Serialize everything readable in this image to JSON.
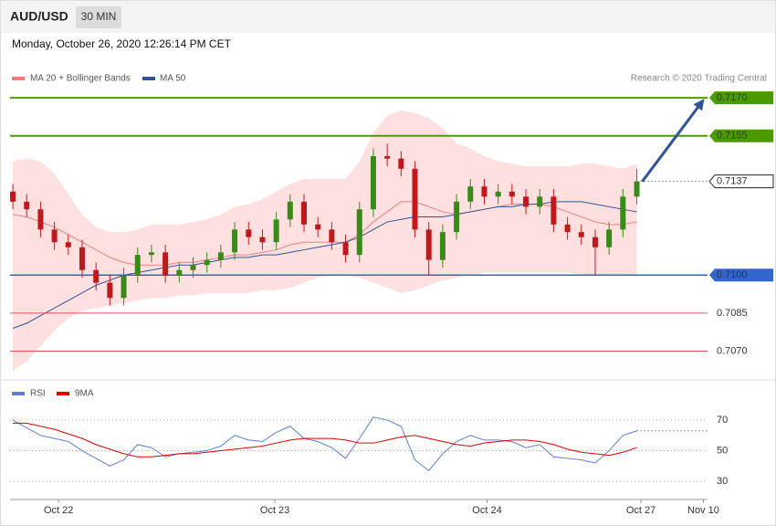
{
  "header": {
    "symbol": "AUD/USD",
    "timeframe": "30 MIN",
    "timestamp": "Monday, October 26, 2020 12:26:14 PM CET"
  },
  "chart_data": [
    {
      "type": "candlestick",
      "annotation": "Research © 2020 Trading Central",
      "xlim": [
        -0.2,
        50.1
      ],
      "ylim": [
        0.7059,
        0.7187
      ],
      "up_color": "#3a8a1a",
      "down_color": "#c0191c",
      "ohlc": {
        "open": [
          0.7133,
          0.7129,
          0.7126,
          0.7118,
          0.7113,
          0.7111,
          0.7102,
          0.7097,
          0.7091,
          0.71,
          0.7108,
          0.7109,
          0.71,
          0.7102,
          0.7104,
          0.7106,
          0.7109,
          0.7118,
          0.7115,
          0.7113,
          0.7122,
          0.7129,
          0.712,
          0.7118,
          0.7113,
          0.7108,
          0.7126,
          0.7147,
          0.7146,
          0.7142,
          0.7118,
          0.7106,
          0.7117,
          0.7129,
          0.7135,
          0.7131,
          0.7133,
          0.7131,
          0.7127,
          0.7131,
          0.712,
          0.7117,
          0.7115,
          0.7111,
          0.7118,
          0.7131
        ],
        "high": [
          0.7136,
          0.7132,
          0.7129,
          0.7121,
          0.7116,
          0.7114,
          0.7105,
          0.71,
          0.7103,
          0.7111,
          0.7112,
          0.7112,
          0.7105,
          0.7107,
          0.7109,
          0.7112,
          0.7121,
          0.7121,
          0.7118,
          0.7125,
          0.7132,
          0.7132,
          0.7123,
          0.7121,
          0.7116,
          0.7129,
          0.715,
          0.7152,
          0.7149,
          0.7145,
          0.7121,
          0.712,
          0.7132,
          0.7138,
          0.7138,
          0.7136,
          0.7136,
          0.7134,
          0.7134,
          0.7134,
          0.7123,
          0.712,
          0.7118,
          0.7121,
          0.7134,
          0.7142
        ],
        "low": [
          0.7126,
          0.7123,
          0.7115,
          0.711,
          0.7108,
          0.7099,
          0.7094,
          0.7088,
          0.7088,
          0.7097,
          0.7105,
          0.7097,
          0.7097,
          0.7099,
          0.7101,
          0.7103,
          0.7106,
          0.7112,
          0.711,
          0.711,
          0.7119,
          0.7117,
          0.7115,
          0.711,
          0.7105,
          0.7105,
          0.7123,
          0.7143,
          0.7139,
          0.7115,
          0.71,
          0.7103,
          0.7114,
          0.7126,
          0.7128,
          0.7128,
          0.7128,
          0.7124,
          0.7124,
          0.7117,
          0.7114,
          0.7112,
          0.71,
          0.7108,
          0.7115,
          0.7128
        ],
        "close": [
          0.7129,
          0.7126,
          0.7118,
          0.7113,
          0.7111,
          0.7102,
          0.7097,
          0.7091,
          0.71,
          0.7108,
          0.7109,
          0.71,
          0.7102,
          0.7104,
          0.7106,
          0.7109,
          0.7118,
          0.7115,
          0.7113,
          0.7122,
          0.7129,
          0.712,
          0.7118,
          0.7113,
          0.7108,
          0.7126,
          0.7147,
          0.7146,
          0.7142,
          0.7118,
          0.7106,
          0.7117,
          0.7129,
          0.7135,
          0.7131,
          0.7133,
          0.7131,
          0.7127,
          0.7131,
          0.712,
          0.7117,
          0.7115,
          0.7111,
          0.7118,
          0.7131,
          0.7137
        ]
      },
      "series": [
        {
          "name": "MA 20 + Bollinger Bands",
          "color": "#f08080",
          "band_color": "#ffd6d6",
          "values": [
            0.7124,
            0.7123,
            0.7121,
            0.7119,
            0.7116,
            0.7113,
            0.711,
            0.7107,
            0.7105,
            0.7104,
            0.7104,
            0.7104,
            0.7105,
            0.7105,
            0.7106,
            0.7107,
            0.7108,
            0.7108,
            0.7109,
            0.711,
            0.7112,
            0.7113,
            0.7113,
            0.7113,
            0.7113,
            0.7116,
            0.7121,
            0.7125,
            0.7129,
            0.7129,
            0.7127,
            0.7125,
            0.7124,
            0.7125,
            0.7126,
            0.7127,
            0.7128,
            0.7128,
            0.7128,
            0.7127,
            0.7125,
            0.7123,
            0.7121,
            0.712,
            0.712,
            0.7121
          ],
          "upper": [
            0.7145,
            0.7146,
            0.7145,
            0.714,
            0.7132,
            0.7124,
            0.7119,
            0.7117,
            0.7117,
            0.7118,
            0.712,
            0.712,
            0.712,
            0.7121,
            0.7122,
            0.7124,
            0.7127,
            0.7128,
            0.713,
            0.7133,
            0.7136,
            0.7138,
            0.7138,
            0.7138,
            0.7138,
            0.7145,
            0.7156,
            0.7163,
            0.7165,
            0.7164,
            0.7162,
            0.7158,
            0.7152,
            0.715,
            0.7147,
            0.7145,
            0.7144,
            0.7143,
            0.7143,
            0.7143,
            0.7143,
            0.7144,
            0.7144,
            0.7143,
            0.7142,
            0.7144
          ],
          "lower": [
            0.7062,
            0.7066,
            0.7072,
            0.7078,
            0.7083,
            0.7086,
            0.7087,
            0.7088,
            0.7089,
            0.709,
            0.7091,
            0.7091,
            0.7092,
            0.7092,
            0.7093,
            0.7093,
            0.7093,
            0.7093,
            0.7094,
            0.7094,
            0.7095,
            0.7097,
            0.7099,
            0.71,
            0.71,
            0.7099,
            0.7097,
            0.7095,
            0.7093,
            0.7094,
            0.7096,
            0.7098,
            0.7099,
            0.71,
            0.7101,
            0.7101,
            0.7101,
            0.7101,
            0.7101,
            0.7101,
            0.7101,
            0.71,
            0.71,
            0.71,
            0.71,
            0.71
          ]
        },
        {
          "name": "MA 50",
          "color": "#2f5597",
          "values": [
            0.7079,
            0.7081,
            0.7084,
            0.7087,
            0.709,
            0.7093,
            0.7096,
            0.7098,
            0.71,
            0.7101,
            0.7102,
            0.7103,
            0.7104,
            0.7104,
            0.7105,
            0.7106,
            0.7107,
            0.7107,
            0.7108,
            0.7108,
            0.7109,
            0.711,
            0.7111,
            0.7112,
            0.7113,
            0.7115,
            0.7118,
            0.7121,
            0.7122,
            0.7123,
            0.7123,
            0.7123,
            0.7124,
            0.7125,
            0.7126,
            0.7127,
            0.7127,
            0.7128,
            0.7128,
            0.7129,
            0.7129,
            0.7129,
            0.7128,
            0.7127,
            0.7126,
            0.7125
          ]
        }
      ],
      "levels": [
        {
          "value": 0.717,
          "label": "0.7170",
          "color": "#4b9b00",
          "style": "tag"
        },
        {
          "value": 0.7155,
          "label": "0.7155",
          "color": "#4b9b00",
          "style": "tag"
        },
        {
          "value": 0.7137,
          "label": "0.7137",
          "color": "#222222",
          "style": "current"
        },
        {
          "value": 0.71,
          "label": "0.7100",
          "color": "#3366cc",
          "style": "tag"
        },
        {
          "value": 0.7085,
          "label": "0.7085",
          "color": "#e05050",
          "style": "text"
        },
        {
          "value": 0.707,
          "label": "0.7070",
          "color": "#e05050",
          "style": "text"
        }
      ],
      "arrow_color": "#2f5597"
    },
    {
      "type": "line",
      "xlim": [
        -0.2,
        50.1
      ],
      "ylim": [
        19.3,
        93.9
      ],
      "yticks": [
        70,
        50,
        30
      ],
      "xticks": [
        {
          "value": 3.3,
          "label": "Oct 22"
        },
        {
          "value": 18.9,
          "label": "Oct 23"
        },
        {
          "value": 34.2,
          "label": "Oct 24"
        },
        {
          "value": 45.3,
          "label": "Oct 27"
        },
        {
          "value": 49.8,
          "label": "Nov 10"
        }
      ],
      "series": [
        {
          "name": "RSI",
          "color": "#5b7fd6",
          "values": [
            70,
            65,
            60,
            58,
            56,
            50,
            45,
            40,
            44,
            54,
            52,
            46,
            48,
            49,
            50,
            53,
            60,
            57,
            56,
            62,
            66,
            58,
            56,
            52,
            45,
            58,
            72,
            70,
            66,
            44,
            37,
            48,
            56,
            60,
            57,
            57,
            56,
            52,
            54,
            46,
            45,
            44,
            42,
            50,
            60,
            63
          ]
        },
        {
          "name": "9MA",
          "color": "#e00000",
          "values": [
            68,
            68,
            66,
            64,
            61,
            58,
            54,
            51,
            48,
            46,
            46,
            47,
            48,
            48,
            49,
            50,
            51,
            52,
            53,
            55,
            57,
            58,
            58,
            58,
            57,
            55,
            55,
            57,
            59,
            60,
            58,
            56,
            54,
            53,
            55,
            56,
            57,
            57,
            56,
            54,
            51,
            49,
            48,
            47,
            49,
            52
          ]
        }
      ]
    }
  ]
}
